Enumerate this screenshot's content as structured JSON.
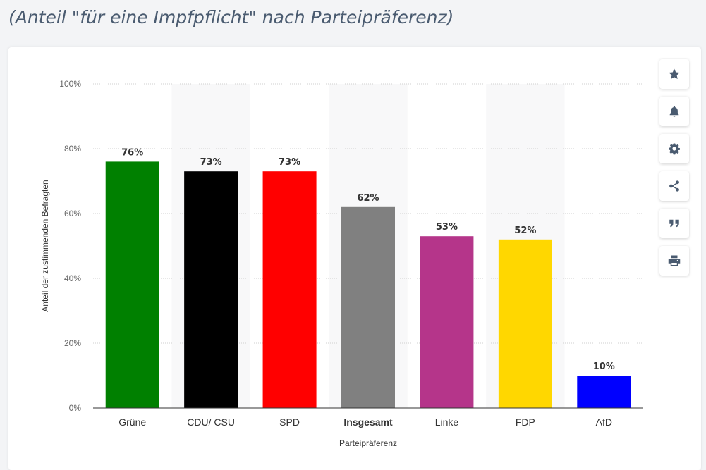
{
  "page": {
    "title": "(Anteil \"für eine Impfpflicht\" nach Parteipräferenz)"
  },
  "toolbar": {
    "buttons": [
      {
        "name": "star-icon"
      },
      {
        "name": "bell-icon"
      },
      {
        "name": "gear-icon"
      },
      {
        "name": "share-icon"
      },
      {
        "name": "quote-icon"
      },
      {
        "name": "print-icon"
      }
    ]
  },
  "chart_data": {
    "type": "bar",
    "title": "",
    "xlabel": "Parteipräferenz",
    "ylabel": "Anteil der zustimmenden Befragten",
    "ylim": [
      0,
      100
    ],
    "yticks": [
      0,
      20,
      40,
      60,
      80,
      100
    ],
    "ytick_labels": [
      "0%",
      "20%",
      "40%",
      "60%",
      "80%",
      "100%"
    ],
    "grid": true,
    "categories": [
      "Grüne",
      "CDU/ CSU",
      "SPD",
      "Insgesamt",
      "Linke",
      "FDP",
      "AfD"
    ],
    "values": [
      76,
      73,
      73,
      62,
      53,
      52,
      10
    ],
    "data_labels": [
      "76%",
      "73%",
      "73%",
      "62%",
      "53%",
      "52%",
      "10%"
    ],
    "colors": [
      "#008000",
      "#000000",
      "#ff0000",
      "#808080",
      "#b5358a",
      "#ffd700",
      "#0000ff"
    ],
    "highlighted_category": "Insgesamt"
  }
}
